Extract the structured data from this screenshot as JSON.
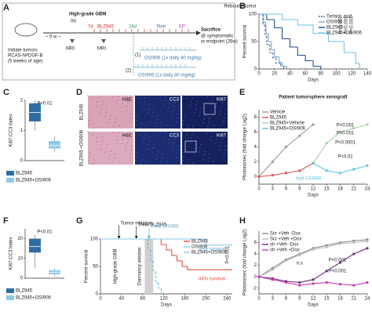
{
  "panel_labels": [
    "A",
    "B",
    "C",
    "D",
    "E",
    "F",
    "G",
    "H"
  ],
  "schematic": {
    "title": "High-grade GBM",
    "day0": "0d",
    "day7": "7d",
    "drug": "BLZ945",
    "day28": "28d",
    "reb": "Reb",
    "ep": "EP",
    "gap": "~ 5 w ~",
    "mri": [
      "MRI",
      "MRI"
    ],
    "initiate": [
      "Initiate tumors",
      "RCAS-hPDGF-B",
      "(5 weeks of age)"
    ],
    "arm1": "(1)",
    "arm1_text": "OSI906 (1x daily 40 mg/kg)",
    "arm2": "(2)",
    "arm2_text": "OSI906 (1x daily 40 mg/kg)",
    "sacrifice": [
      "Sacrifice",
      "@ symptomatic",
      "or endpoint (26w)"
    ]
  },
  "images": {
    "columns": [
      "H&E",
      "CC3",
      "Ki67"
    ],
    "rows": [
      "BLZ945",
      "BLZ945 +OSI906"
    ]
  },
  "chart_data": [
    {
      "type": "line",
      "step": true,
      "ylabel": "Percent survival",
      "xlabel": "Days",
      "xlim": [
        0,
        140
      ],
      "xticks": [
        0,
        20,
        40,
        60,
        80,
        100,
        120,
        140
      ],
      "ylim": [
        0,
        100
      ],
      "yticks": [
        0,
        50,
        100
      ],
      "legend": "top-right",
      "annotations": [
        "Rebound tumor",
        "P<0.001",
        "P<0.001",
        "P<0.001"
      ],
      "series": [
        {
          "name": "Tartaric acid",
          "color": "#5b6b9a",
          "dash": true,
          "x": [
            0,
            5,
            8,
            10,
            14,
            18,
            22,
            28,
            32
          ],
          "values": [
            100,
            80,
            60,
            45,
            30,
            20,
            10,
            5,
            0
          ]
        },
        {
          "name": "OSI906",
          "color": "#7ea6d6",
          "x": [
            0,
            6,
            9,
            12,
            16,
            20,
            26,
            30,
            36
          ],
          "values": [
            100,
            85,
            65,
            50,
            35,
            22,
            12,
            5,
            0
          ]
        },
        {
          "name": "BLZ945",
          "color": "#1f4e8c",
          "x": [
            0,
            10,
            20,
            30,
            40,
            50,
            60,
            70,
            80
          ],
          "values": [
            100,
            90,
            75,
            55,
            40,
            25,
            15,
            5,
            0
          ]
        },
        {
          "name": "BLZ945+OSI906",
          "color": "#6ec6e0",
          "x": [
            0,
            30,
            50,
            70,
            90,
            110,
            125,
            130
          ],
          "values": [
            100,
            90,
            80,
            65,
            50,
            30,
            10,
            0
          ]
        }
      ]
    },
    {
      "type": "box",
      "ylabel": "Ki67:CC3 Index",
      "ylim": [
        0,
        2
      ],
      "yticks": [
        0,
        1,
        2
      ],
      "annotations": [
        "P<0.01"
      ],
      "boxes": [
        {
          "name": "BLZ945",
          "color": "#2e6da4",
          "min": 1.0,
          "q1": 1.3,
          "median": 1.6,
          "q3": 1.9,
          "max": 2.0
        },
        {
          "name": "BLZ945+OSI906",
          "color": "#8ecae6",
          "min": 0.3,
          "q1": 0.4,
          "median": 0.5,
          "q3": 0.65,
          "max": 0.8
        }
      ]
    },
    {
      "type": "line",
      "title": "Patient tumorsphere xenograft",
      "ylabel": "Photons/sec (fold change Log2)",
      "xlabel": "Days",
      "xlim": [
        0,
        24
      ],
      "xticks": [
        0,
        3,
        6,
        9,
        12,
        15,
        18,
        21,
        24
      ],
      "ylim": [
        -1,
        9
      ],
      "yticks": [
        0,
        2,
        4,
        6,
        8
      ],
      "legend": "top-left",
      "annotations": [
        "P<0.001",
        "P<0.001",
        "P<0.0001",
        "P<0.01",
        "Add OSI906"
      ],
      "series": [
        {
          "name": "Vehicle",
          "color": "#999999",
          "x": [
            0,
            3,
            6,
            9,
            12
          ],
          "values": [
            0,
            2,
            4,
            5.5,
            7
          ]
        },
        {
          "name": "BLZ945",
          "color": "#e05050",
          "x": [
            0,
            3,
            6,
            9,
            12
          ],
          "values": [
            0,
            0.2,
            0.5,
            0.8,
            1.8
          ]
        },
        {
          "name": "BLZ945+Vehicle",
          "color": "#a8cfa8",
          "x": [
            12,
            15,
            18,
            21,
            24
          ],
          "values": [
            1.8,
            4.5,
            6,
            6.5,
            7
          ]
        },
        {
          "name": "BLZ945+OSI906",
          "color": "#5fc3dc",
          "x": [
            12,
            15,
            18,
            21,
            24
          ],
          "values": [
            1.8,
            0.8,
            0.5,
            1,
            1.5
          ]
        }
      ]
    },
    {
      "type": "box",
      "ylabel": "Ki67:CC3 Index",
      "ylim": [
        0,
        25
      ],
      "yticks": [
        0,
        10,
        20
      ],
      "annotations": [
        "P<0.01"
      ],
      "boxes": [
        {
          "name": "BLZ945",
          "color": "#2e6da4",
          "min": 5,
          "q1": 13,
          "median": 16,
          "q3": 20,
          "max": 22
        },
        {
          "name": "BLZ945+OSI906",
          "color": "#8ecae6",
          "min": 1,
          "q1": 2,
          "median": 3,
          "q3": 4,
          "max": 5
        }
      ]
    },
    {
      "type": "line",
      "step": true,
      "ylabel": "Percent survival",
      "xlabel": "Days",
      "xlim": [
        0,
        250
      ],
      "xticks": [
        0,
        40,
        80,
        120,
        160,
        200,
        240
      ],
      "ylim": [
        0,
        100
      ],
      "yticks": [
        0,
        50,
        100
      ],
      "legend": "top-right",
      "events": [
        {
          "label": "Tumor initiation",
          "day": 35
        },
        {
          "label": "Treat BLZ945",
          "day": 68
        },
        {
          "label": "Treat OSI906",
          "day": 92
        }
      ],
      "dormancy_window": [
        84,
        100
      ],
      "annotations": [
        "High-grade GBM",
        "Dormancy window",
        "89% survival",
        "44% survival",
        "P<0.001"
      ],
      "series": [
        {
          "name": "BLZ945",
          "color": "#e0503c",
          "x": [
            0,
            115,
            125,
            135,
            145,
            155,
            165,
            250
          ],
          "values": [
            100,
            90,
            80,
            70,
            60,
            50,
            44,
            44
          ]
        },
        {
          "name": "OSI906",
          "color": "#5fc3dc",
          "dash": true,
          "x": [
            0,
            90,
            95,
            100,
            105,
            110,
            115
          ],
          "values": [
            100,
            80,
            60,
            40,
            20,
            10,
            0
          ]
        },
        {
          "name": "BLZ945+OSI906",
          "color": "#8ec9e8",
          "x": [
            0,
            200,
            250
          ],
          "values": [
            100,
            89,
            89
          ]
        }
      ]
    },
    {
      "type": "line",
      "ylabel": "Photons/sec (fold change Log2)",
      "xlabel": "Days",
      "xlim": [
        0,
        24
      ],
      "xticks": [
        0,
        3,
        6,
        9,
        12,
        15,
        18,
        21,
        24
      ],
      "ylim": [
        -3,
        8
      ],
      "yticks": [
        -2,
        0,
        2,
        4,
        6
      ],
      "legend": "top-left",
      "annotations": [
        "P<0.001",
        "P<0.001",
        "n.s"
      ],
      "series": [
        {
          "name": "Scr +Veh -Dox",
          "color": "#8a8a8a",
          "x": [
            0,
            3,
            6,
            9,
            12,
            15,
            18,
            21,
            24
          ],
          "values": [
            0,
            1.5,
            3,
            4,
            5,
            5.5,
            6,
            6.3,
            6.5
          ]
        },
        {
          "name": "Scr +Veh +Dox",
          "color": "#c0c0c0",
          "x": [
            0,
            3,
            6,
            9,
            12,
            15,
            18,
            21,
            24
          ],
          "values": [
            0,
            1.2,
            2.8,
            3.8,
            4.8,
            5.2,
            5.8,
            6,
            6.2
          ]
        },
        {
          "name": "sh +Veh -Dox",
          "color": "#6a2c82",
          "x": [
            0,
            3,
            6,
            9,
            12,
            15,
            18,
            21,
            24
          ],
          "values": [
            0,
            -0.3,
            -0.8,
            -1,
            -0.5,
            1,
            2.5,
            4,
            5
          ]
        },
        {
          "name": "sh +Veh +Dox",
          "color": "#c23ab0",
          "x": [
            0,
            3,
            6,
            9,
            12,
            15,
            18,
            21,
            24
          ],
          "values": [
            0,
            -0.5,
            -1,
            -1.5,
            -1.2,
            -1,
            -1.3,
            -1.5,
            -1
          ]
        }
      ]
    }
  ]
}
